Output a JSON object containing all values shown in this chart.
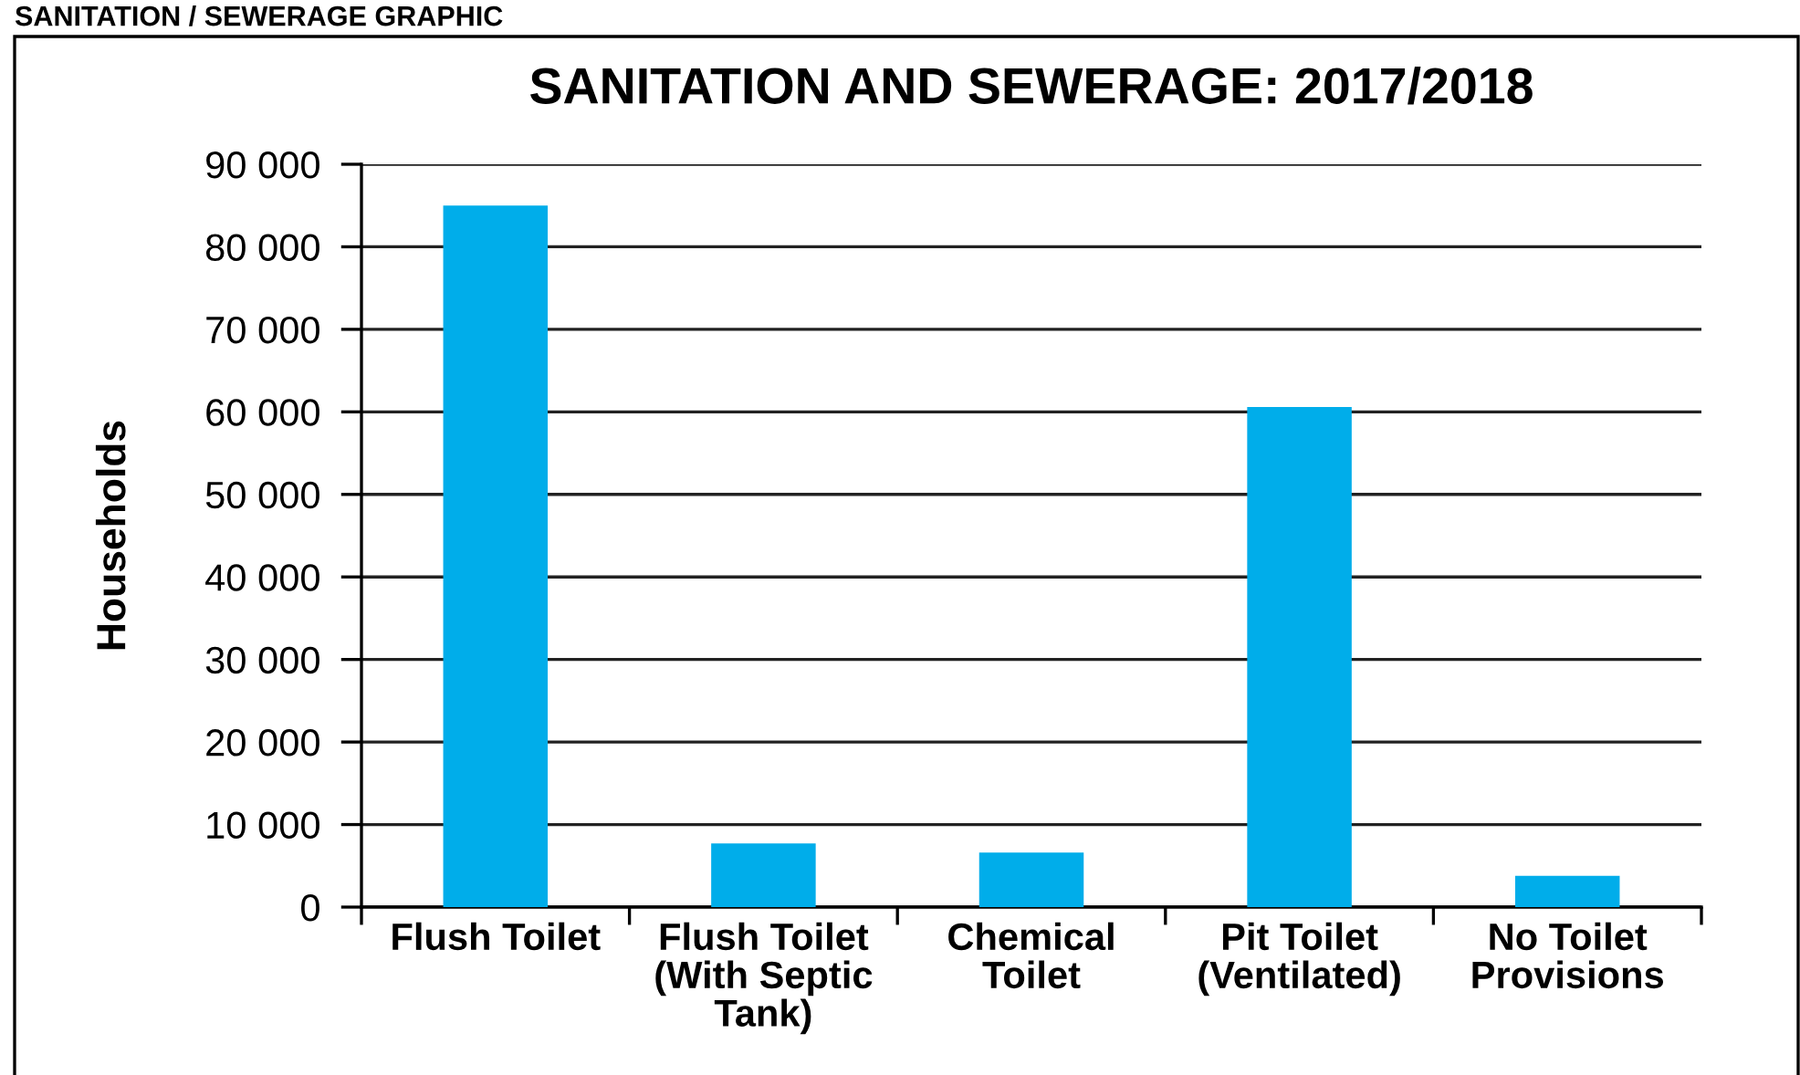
{
  "chart_data": {
    "type": "bar",
    "title": "SANITATION AND SEWERAGE: 2017/2018",
    "ylabel": "Households",
    "annotations": [
      "SANITATION / SEWERAGE GRAPHIC"
    ],
    "categories": [
      "Flush Toilet",
      "Flush Toilet\n(With Septic\nTank)",
      "Chemical\nToilet",
      "Pit Toilet\n(Ventilated)",
      "No Toilet\nProvisions"
    ],
    "values": [
      85000,
      7700,
      6600,
      60600,
      3800
    ],
    "color": "#00adea",
    "ylim": [
      0,
      90000
    ],
    "yticks": [
      {
        "value": 0,
        "label": "0"
      },
      {
        "value": 10000,
        "label": "10 000"
      },
      {
        "value": 20000,
        "label": "20 000"
      },
      {
        "value": 30000,
        "label": "30 000"
      },
      {
        "value": 40000,
        "label": "40 000"
      },
      {
        "value": 50000,
        "label": "50 000"
      },
      {
        "value": 60000,
        "label": "60 000"
      },
      {
        "value": 70000,
        "label": "70 000"
      },
      {
        "value": 80000,
        "label": "80 000"
      },
      {
        "value": 90000,
        "label": "90 000"
      }
    ],
    "grid": "y",
    "legend": false
  }
}
